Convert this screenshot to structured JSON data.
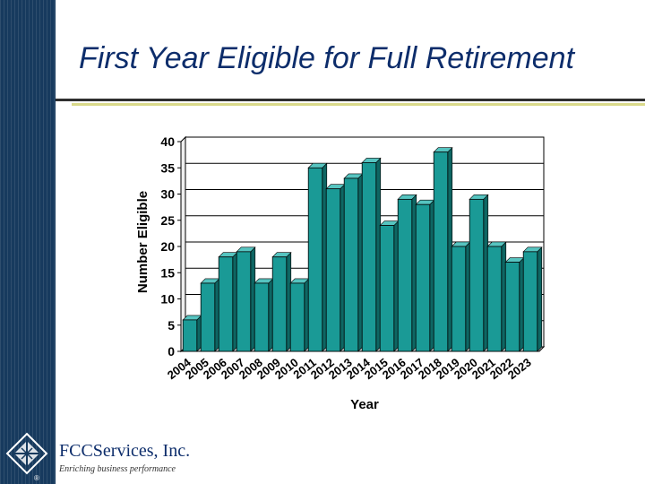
{
  "slide": {
    "title": "First Year Eligible for Full Retirement"
  },
  "brand": {
    "company": "FCCServices, Inc.",
    "tagline": "Enriching business performance",
    "registered_mark": "®"
  },
  "chart_data": {
    "type": "bar",
    "title": "",
    "xlabel": "Year",
    "ylabel": "Number Eligible",
    "categories": [
      "2004",
      "2005",
      "2006",
      "2007",
      "2008",
      "2009",
      "2010",
      "2011",
      "2012",
      "2013",
      "2014",
      "2015",
      "2016",
      "2017",
      "2018",
      "2019",
      "2020",
      "2021",
      "2022",
      "2023"
    ],
    "values": [
      6,
      13,
      18,
      19,
      13,
      18,
      13,
      35,
      31,
      33,
      36,
      24,
      29,
      28,
      38,
      20,
      29,
      20,
      17,
      19
    ],
    "ylim": [
      0,
      40
    ],
    "yticks": [
      0,
      5,
      10,
      15,
      20,
      25,
      30,
      35,
      40
    ],
    "grid": true,
    "legend": "none",
    "bar_color": "#1a9a96"
  }
}
